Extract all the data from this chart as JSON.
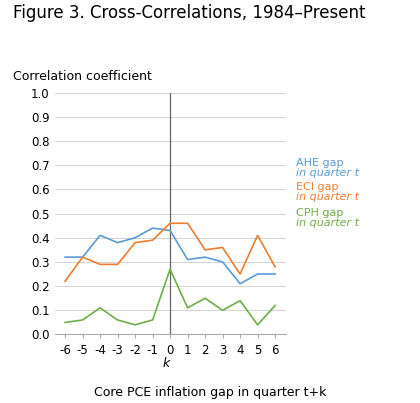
{
  "title": "Figure 3. Cross-Correlations, 1984–Present",
  "ylabel": "Correlation coefficient",
  "xlabel_bottom": "Core PCE inflation gap in quarter t+k",
  "xlabel_k": "k",
  "k_values": [
    -6,
    -5,
    -4,
    -3,
    -2,
    -1,
    0,
    1,
    2,
    3,
    4,
    5,
    6
  ],
  "AHE": [
    0.32,
    0.32,
    0.41,
    0.38,
    0.4,
    0.44,
    0.43,
    0.31,
    0.32,
    0.3,
    0.21,
    0.25,
    0.25
  ],
  "ECI": [
    0.22,
    0.32,
    0.29,
    0.29,
    0.38,
    0.39,
    0.46,
    0.46,
    0.35,
    0.36,
    0.25,
    0.41,
    0.28
  ],
  "CPH": [
    0.05,
    0.06,
    0.11,
    0.06,
    0.04,
    0.06,
    0.27,
    0.11,
    0.15,
    0.1,
    0.14,
    0.04,
    0.12
  ],
  "AHE_color": "#5B9BD5",
  "ECI_color": "#ED7D31",
  "CPH_color": "#70AD47",
  "vline_x": 0,
  "vline_color": "#666666",
  "ylim": [
    0.0,
    1.0
  ],
  "yticks": [
    0.0,
    0.1,
    0.2,
    0.3,
    0.4,
    0.5,
    0.6,
    0.7,
    0.8,
    0.9,
    1.0
  ],
  "grid_color": "#CCCCCC",
  "bg_color": "#FFFFFF",
  "legend_AHE_line1": "AHE gap",
  "legend_AHE_line2": "in quarter t",
  "legend_ECI_line1": "ECI gap",
  "legend_ECI_line2": "in quarter t",
  "legend_CPH_line1": "CPH gap",
  "legend_CPH_line2": "in quarter t",
  "title_fontsize": 12,
  "ylabel_fontsize": 9,
  "xlabel_fontsize": 9,
  "tick_fontsize": 8.5,
  "legend_fontsize": 8
}
